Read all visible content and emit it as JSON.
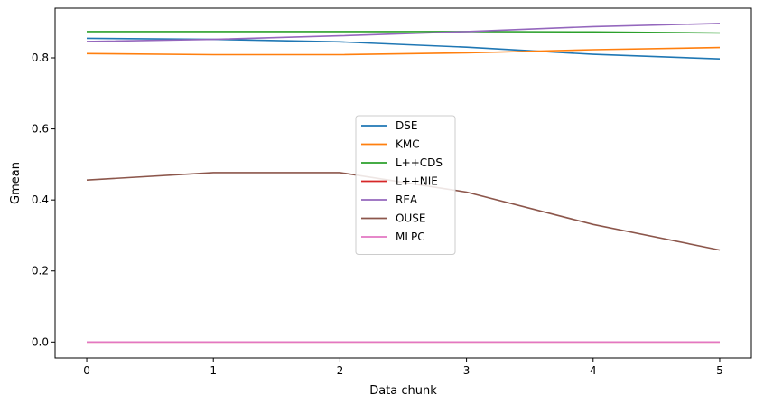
{
  "chart_data": {
    "type": "line",
    "title": "",
    "xlabel": "Data chunk",
    "ylabel": "Gmean",
    "x": [
      0,
      1,
      2,
      3,
      4,
      5
    ],
    "x_ticks": [
      "0",
      "1",
      "2",
      "3",
      "4",
      "5"
    ],
    "y_ticks": [
      "0.0",
      "0.2",
      "0.4",
      "0.6",
      "0.8"
    ],
    "y_tick_values": [
      0.0,
      0.2,
      0.4,
      0.6,
      0.8
    ],
    "xlim": [
      -0.25,
      5.25
    ],
    "ylim": [
      -0.045,
      0.94
    ],
    "grid": false,
    "legend_position": "center",
    "series": [
      {
        "name": "DSE",
        "color": "#1f77b4",
        "values": [
          0.855,
          0.852,
          0.845,
          0.83,
          0.81,
          0.797
        ]
      },
      {
        "name": "KMC",
        "color": "#ff7f0e",
        "values": [
          0.812,
          0.809,
          0.809,
          0.814,
          0.823,
          0.829
        ]
      },
      {
        "name": "L++CDS",
        "color": "#2ca02c",
        "values": [
          0.874,
          0.874,
          0.874,
          0.874,
          0.873,
          0.87
        ]
      },
      {
        "name": "L++NIE",
        "color": "#d62728",
        "values": [
          0.0,
          0.0,
          0.0,
          0.0,
          0.0,
          0.0
        ]
      },
      {
        "name": "REA",
        "color": "#9467bd",
        "values": [
          0.846,
          0.852,
          0.862,
          0.874,
          0.888,
          0.897
        ]
      },
      {
        "name": "OUSE",
        "color": "#8c564b",
        "values": [
          0.456,
          0.477,
          0.477,
          0.422,
          0.331,
          0.259
        ]
      },
      {
        "name": "MLPC",
        "color": "#e377c2",
        "values": [
          0.0,
          0.0,
          0.0,
          0.0,
          0.0,
          0.0
        ]
      }
    ]
  }
}
